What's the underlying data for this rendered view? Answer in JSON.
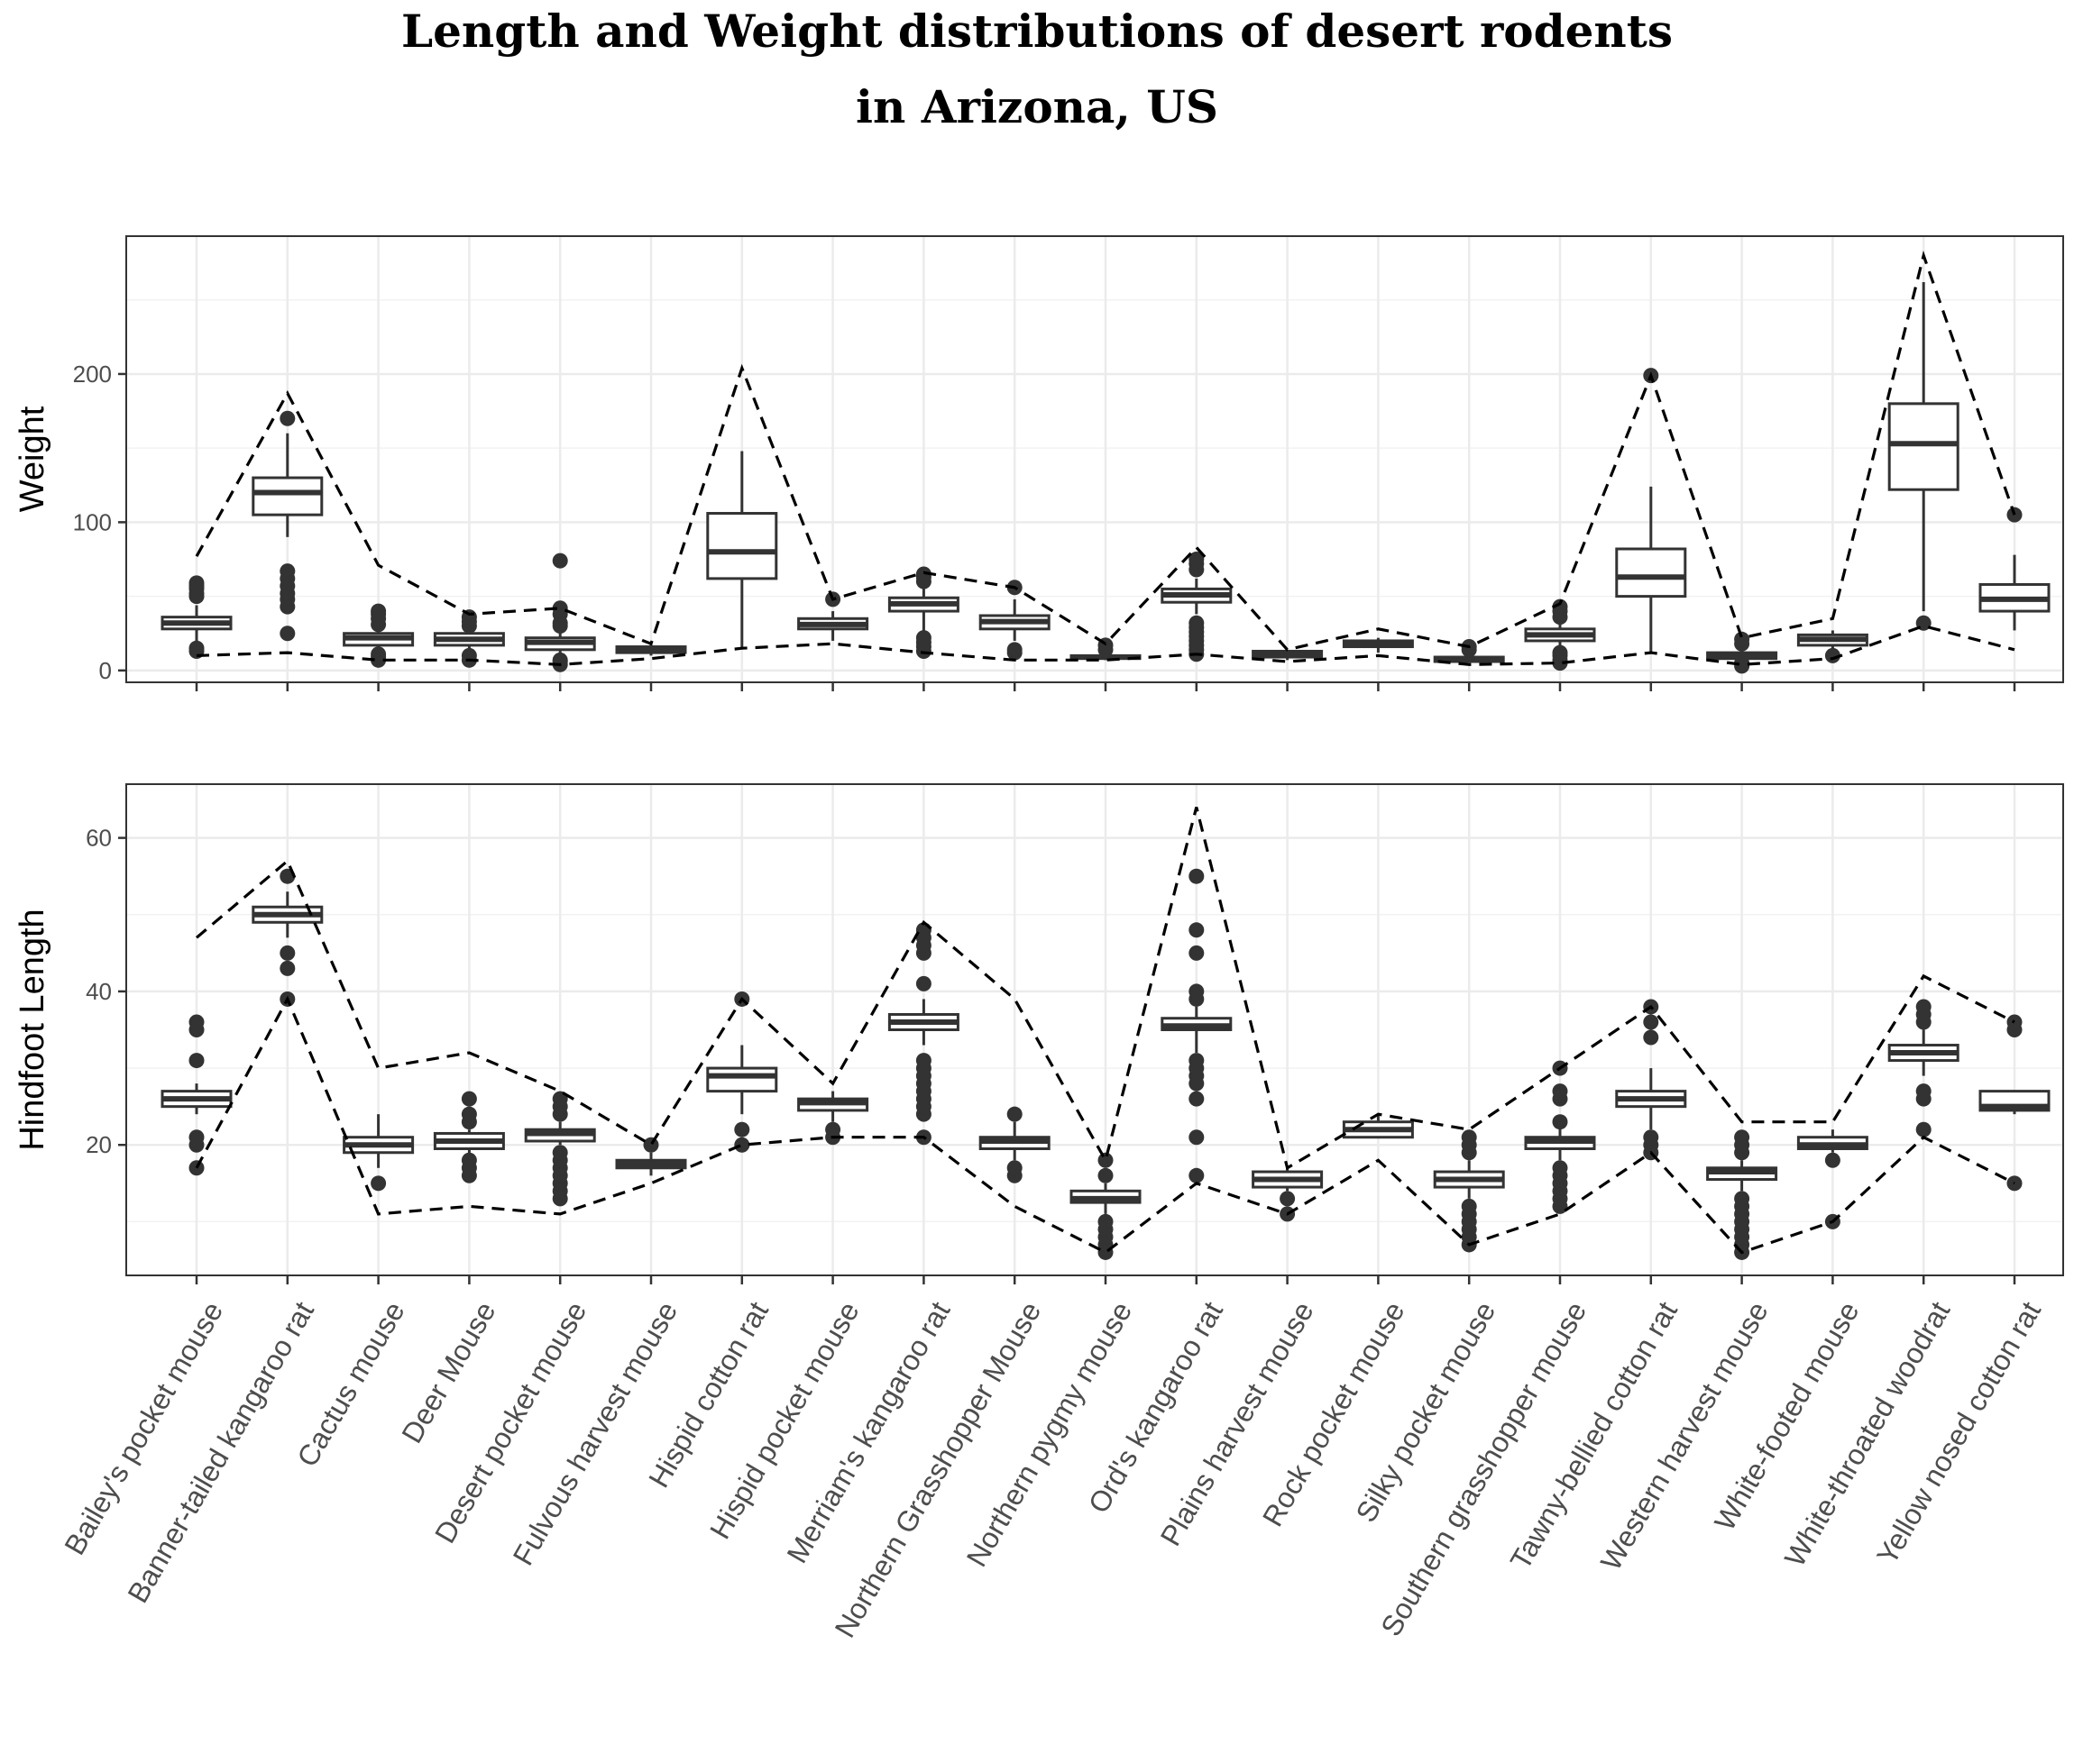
{
  "chart_data": {
    "type": "box",
    "title_lines": [
      "Length and Weight distributions of desert rodents",
      "in Arizona, US"
    ],
    "categories": [
      "Bailey's pocket mouse",
      "Banner-tailed kangaroo rat",
      "Cactus mouse",
      "Deer Mouse",
      "Desert pocket mouse",
      "Fulvous harvest mouse",
      "Hispid cotton rat",
      "Hispid pocket mouse",
      "Merriam's kangaroo rat",
      "Northern Grasshopper Mouse",
      "Northern pygmy mouse",
      "Ord's kangaroo rat",
      "Plains harvest mouse",
      "Rock pocket mouse",
      "Silky pocket mouse",
      "Southern grasshopper mouse",
      "Tawny-bellied cotton rat",
      "Western harvest mouse",
      "White-footed mouse",
      "White-throated woodrat",
      "Yellow nosed cotton rat"
    ],
    "grid": true,
    "line_style": "dashed",
    "panels": [
      {
        "ylabel": "Weight",
        "ylim": [
          -8,
          293
        ],
        "yticks": [
          0,
          100,
          200
        ],
        "max_line": [
          77,
          187,
          71,
          38,
          42,
          18,
          204,
          48,
          66,
          56,
          18,
          83,
          14,
          28,
          16,
          45,
          199,
          22,
          35,
          280,
          105
        ],
        "min_line": [
          10,
          12,
          7,
          7,
          4,
          8,
          15,
          18,
          12,
          7,
          7,
          11,
          6,
          10,
          4,
          5,
          12,
          4,
          8,
          30,
          14
        ],
        "boxes": [
          {
            "low": 20,
            "q1": 28,
            "med": 32,
            "q3": 36,
            "high": 44,
            "outliers": [
              13,
              15,
              50,
              52,
              55,
              57,
              59
            ]
          },
          {
            "low": 90,
            "q1": 105,
            "med": 120,
            "q3": 130,
            "high": 160,
            "outliers": [
              25,
              43,
              48,
              52,
              57,
              62,
              67,
              170
            ]
          },
          {
            "low": 15,
            "q1": 17,
            "med": 22,
            "q3": 25,
            "high": 28,
            "outliers": [
              7,
              9,
              11,
              31,
              35,
              38,
              40
            ]
          },
          {
            "low": 13,
            "q1": 17,
            "med": 21,
            "q3": 25,
            "high": 28,
            "outliers": [
              7,
              10,
              30,
              33,
              36
            ]
          },
          {
            "low": 10,
            "q1": 14,
            "med": 19,
            "q3": 22,
            "high": 27,
            "outliers": [
              4,
              6,
              7,
              30,
              32,
              38,
              42,
              74
            ]
          },
          {
            "low": 10,
            "q1": 12,
            "med": 14,
            "q3": 16,
            "high": 18,
            "outliers": []
          },
          {
            "low": 15,
            "q1": 62,
            "med": 80,
            "q3": 106,
            "high": 148,
            "outliers": []
          },
          {
            "low": 20,
            "q1": 28,
            "med": 31,
            "q3": 35,
            "high": 40,
            "outliers": [
              48
            ]
          },
          {
            "low": 25,
            "q1": 40,
            "med": 45,
            "q3": 49,
            "high": 58,
            "outliers": [
              13,
              16,
              19,
              22,
              60,
              63,
              65
            ]
          },
          {
            "low": 20,
            "q1": 28,
            "med": 33,
            "q3": 37,
            "high": 48,
            "outliers": [
              12,
              14,
              56
            ]
          },
          {
            "low": 7,
            "q1": 8,
            "med": 9,
            "q3": 10,
            "high": 12,
            "outliers": [
              14,
              17
            ]
          },
          {
            "low": 38,
            "q1": 46,
            "med": 51,
            "q3": 55,
            "high": 62,
            "outliers": [
              11,
              14,
              17,
              20,
              23,
              26,
              29,
              32,
              68,
              72,
              75
            ]
          },
          {
            "low": 7,
            "q1": 9,
            "med": 11,
            "q3": 13,
            "high": 14,
            "outliers": []
          },
          {
            "low": 12,
            "q1": 16,
            "med": 18,
            "q3": 20,
            "high": 22,
            "outliers": []
          },
          {
            "low": 5,
            "q1": 6,
            "med": 8,
            "q3": 9,
            "high": 11,
            "outliers": [
              14,
              16
            ]
          },
          {
            "low": 15,
            "q1": 20,
            "med": 24,
            "q3": 28,
            "high": 33,
            "outliers": [
              5,
              7,
              10,
              12,
              36,
              40,
              43
            ]
          },
          {
            "low": 12,
            "q1": 50,
            "med": 63,
            "q3": 82,
            "high": 124,
            "outliers": [
              199
            ]
          },
          {
            "low": 6,
            "q1": 8,
            "med": 10,
            "q3": 12,
            "high": 14,
            "outliers": [
              3,
              5,
              18,
              21
            ]
          },
          {
            "low": 14,
            "q1": 17,
            "med": 21,
            "q3": 24,
            "high": 27,
            "outliers": [
              10
            ]
          },
          {
            "low": 40,
            "q1": 122,
            "med": 153,
            "q3": 180,
            "high": 262,
            "outliers": [
              32
            ]
          },
          {
            "low": 27,
            "q1": 40,
            "med": 48,
            "q3": 58,
            "high": 78,
            "outliers": [
              105
            ]
          }
        ]
      },
      {
        "ylabel": "Hindfoot Length",
        "ylim": [
          3,
          67
        ],
        "yticks": [
          20,
          40,
          60
        ],
        "max_line": [
          47,
          57,
          30,
          32,
          27,
          20,
          39,
          28,
          49,
          39,
          18,
          64,
          17,
          24,
          22,
          30,
          38,
          23,
          23,
          42,
          36
        ],
        "min_line": [
          17,
          39,
          11,
          12,
          11,
          15,
          20,
          21,
          21,
          12,
          6,
          15,
          11,
          18,
          7,
          11,
          19,
          6,
          10,
          21,
          15
        ],
        "boxes": [
          {
            "low": 24,
            "q1": 25,
            "med": 26,
            "q3": 27,
            "high": 28,
            "outliers": [
              17,
              20,
              21,
              31,
              35,
              36
            ]
          },
          {
            "low": 47,
            "q1": 49,
            "med": 50,
            "q3": 51,
            "high": 53,
            "outliers": [
              39,
              43,
              45,
              55
            ]
          },
          {
            "low": 17,
            "q1": 19,
            "med": 20,
            "q3": 21,
            "high": 24,
            "outliers": [
              15
            ]
          },
          {
            "low": 18,
            "q1": 19.5,
            "med": 20.5,
            "q3": 21.5,
            "high": 22,
            "outliers": [
              16,
              17,
              18,
              23,
              24,
              26
            ]
          },
          {
            "low": 20,
            "q1": 20.5,
            "med": 21.5,
            "q3": 22,
            "high": 23,
            "outliers": [
              13,
              14,
              15,
              16,
              17,
              18,
              19,
              24,
              25,
              26
            ]
          },
          {
            "low": 16,
            "q1": 17,
            "med": 17.5,
            "q3": 18,
            "high": 19,
            "outliers": [
              20
            ]
          },
          {
            "low": 24,
            "q1": 27,
            "med": 29,
            "q3": 30,
            "high": 33,
            "outliers": [
              20,
              22,
              39
            ]
          },
          {
            "low": 23,
            "q1": 24.5,
            "med": 25.5,
            "q3": 26,
            "high": 27,
            "outliers": [
              21,
              22
            ]
          },
          {
            "low": 33,
            "q1": 35,
            "med": 36,
            "q3": 37,
            "high": 39,
            "outliers": [
              21,
              24,
              25,
              26,
              27,
              28,
              29,
              30,
              31,
              41,
              45,
              46,
              47,
              48
            ]
          },
          {
            "low": 18,
            "q1": 19.5,
            "med": 20.5,
            "q3": 21,
            "high": 23,
            "outliers": [
              16,
              17,
              24
            ]
          },
          {
            "low": 11,
            "q1": 12.5,
            "med": 13,
            "q3": 14,
            "high": 15,
            "outliers": [
              6,
              7,
              8,
              9,
              10,
              16,
              18
            ]
          },
          {
            "low": 32,
            "q1": 35,
            "med": 35.5,
            "q3": 36.5,
            "high": 38,
            "outliers": [
              16,
              21,
              26,
              28,
              29,
              30,
              31,
              39,
              40,
              45,
              48,
              55
            ]
          },
          {
            "low": 14,
            "q1": 14.5,
            "med": 15.5,
            "q3": 16.5,
            "high": 17,
            "outliers": [
              11,
              13
            ]
          },
          {
            "low": 21,
            "q1": 21,
            "med": 22,
            "q3": 23,
            "high": 24,
            "outliers": []
          },
          {
            "low": 13,
            "q1": 14.5,
            "med": 15.5,
            "q3": 16.5,
            "high": 18,
            "outliers": [
              7,
              8,
              9,
              10,
              11,
              12,
              19,
              20,
              21
            ]
          },
          {
            "low": 18,
            "q1": 19.5,
            "med": 20.5,
            "q3": 21,
            "high": 23,
            "outliers": [
              12,
              13,
              14,
              15,
              16,
              17,
              23,
              26,
              27,
              30
            ]
          },
          {
            "low": 22,
            "q1": 25,
            "med": 26,
            "q3": 27,
            "high": 30,
            "outliers": [
              19,
              20,
              21,
              34,
              36,
              38
            ]
          },
          {
            "low": 14,
            "q1": 15.5,
            "med": 16.5,
            "q3": 17,
            "high": 18,
            "outliers": [
              6,
              7,
              8,
              9,
              10,
              11,
              12,
              13,
              19,
              20,
              21
            ]
          },
          {
            "low": 19,
            "q1": 19.5,
            "med": 20,
            "q3": 21,
            "high": 22,
            "outliers": [
              10,
              18
            ]
          },
          {
            "low": 29,
            "q1": 31,
            "med": 32,
            "q3": 33,
            "high": 35,
            "outliers": [
              22,
              26,
              27,
              36,
              37,
              38
            ]
          },
          {
            "low": 24,
            "q1": 24.5,
            "med": 25,
            "q3": 27,
            "high": 27,
            "outliers": [
              15,
              35,
              36
            ]
          }
        ]
      }
    ]
  }
}
